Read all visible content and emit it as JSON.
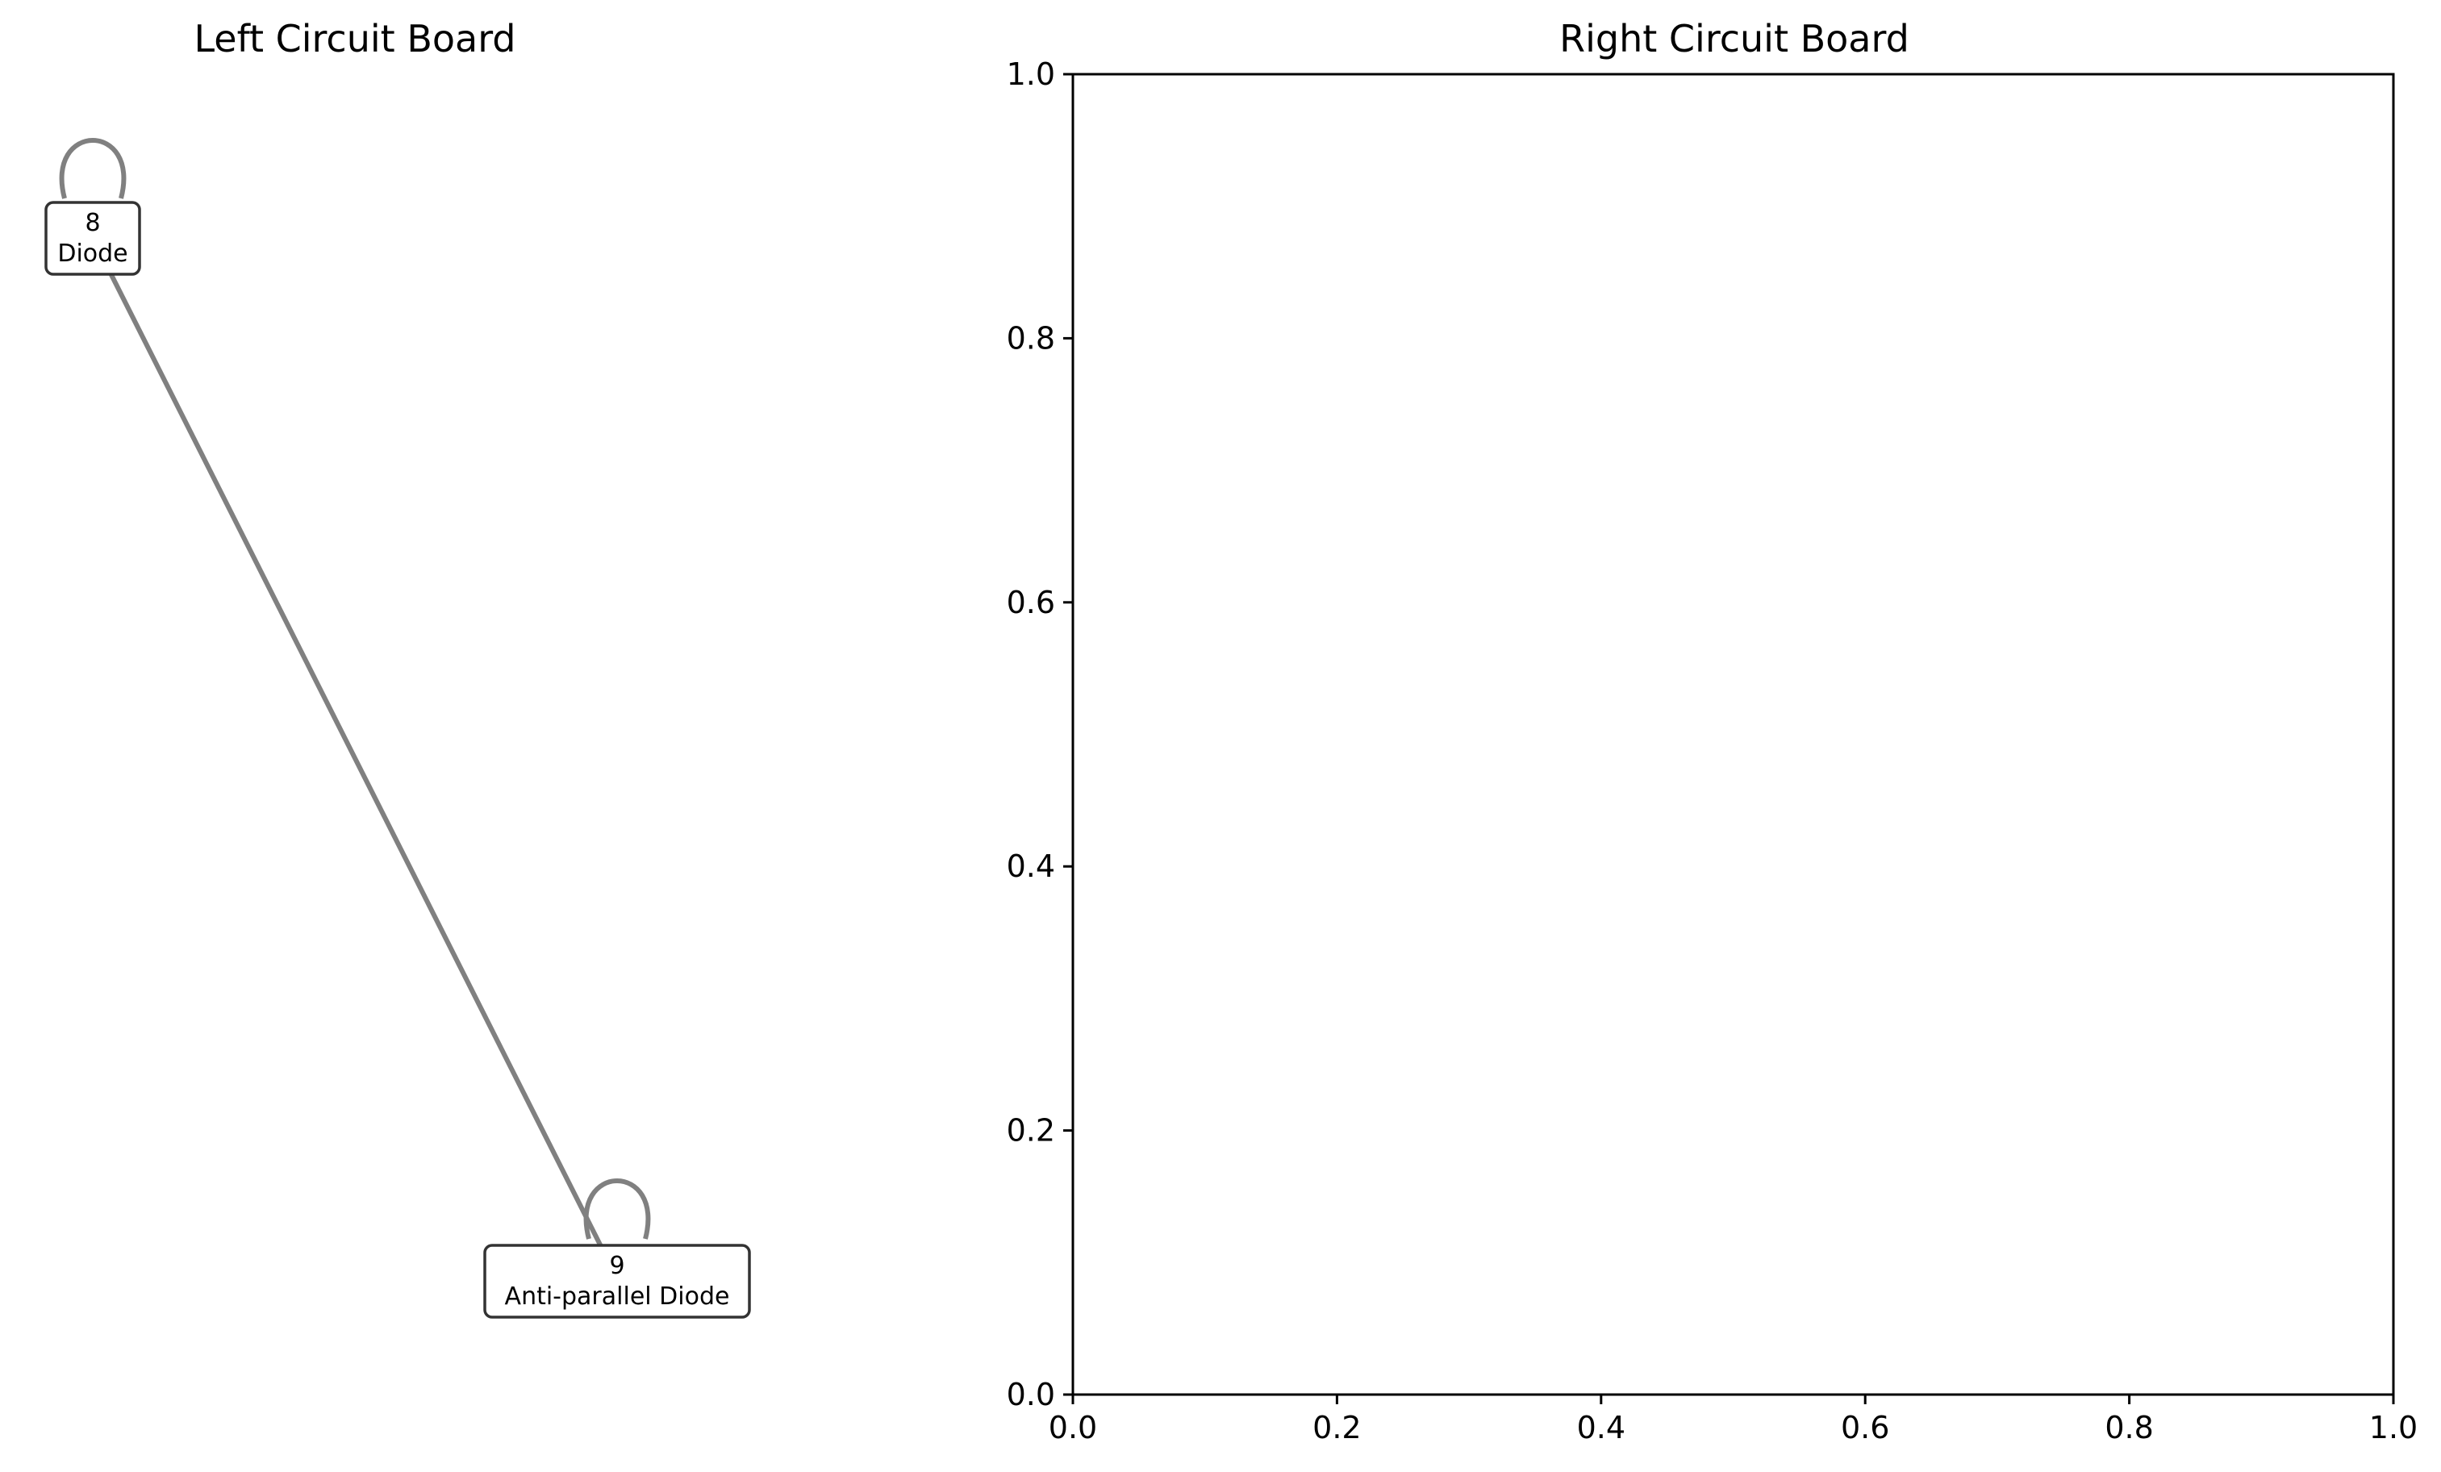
{
  "left_panel": {
    "title": "Left Circuit Board",
    "edge_color": "#808080",
    "node_color": "#f0f8ff",
    "nodes": [
      {
        "id": "8",
        "label": "Diode"
      },
      {
        "id": "9",
        "label": "Anti-parallel Diode"
      }
    ],
    "edges": [
      {
        "from": "8",
        "to": "8"
      },
      {
        "from": "8",
        "to": "9"
      },
      {
        "from": "9",
        "to": "9"
      }
    ]
  },
  "right_panel": {
    "title": "Right Circuit Board",
    "xlim": [
      0.0,
      1.0
    ],
    "ylim": [
      0.0,
      1.0
    ],
    "x_ticks": [
      "0.0",
      "0.2",
      "0.4",
      "0.6",
      "0.8",
      "1.0"
    ],
    "y_ticks": [
      "0.0",
      "0.2",
      "0.4",
      "0.6",
      "0.8",
      "1.0"
    ]
  }
}
